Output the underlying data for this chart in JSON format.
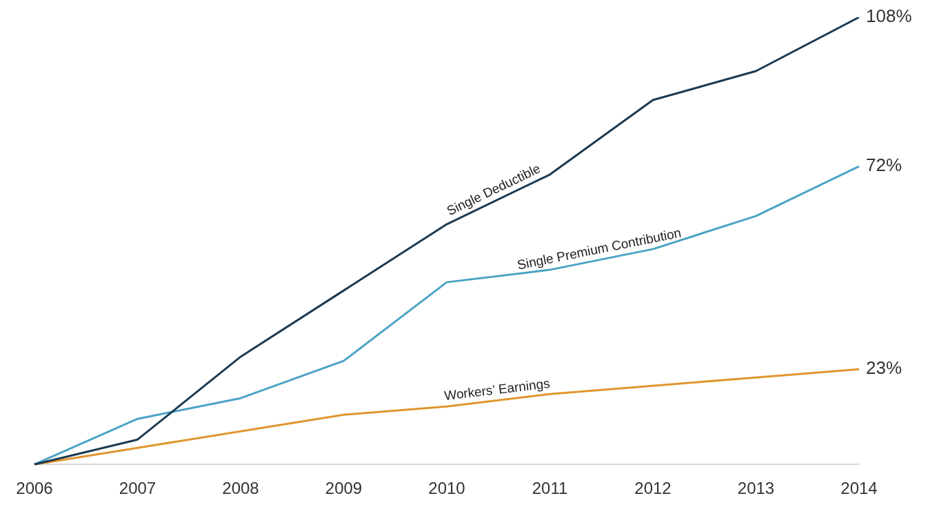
{
  "chart_data": {
    "type": "line",
    "categories": [
      "2006",
      "2007",
      "2008",
      "2009",
      "2010",
      "2011",
      "2012",
      "2013",
      "2014"
    ],
    "tick_labels": "x",
    "grid": false,
    "legend": false,
    "marker": "none",
    "line_style": "solid",
    "series": [
      {
        "name": "Single Deductible",
        "color": "#1c3a52",
        "values": [
          0,
          6,
          26,
          42,
          58,
          70,
          88,
          95,
          108
        ],
        "value_labels": [
          null,
          null,
          null,
          null,
          null,
          null,
          null,
          null,
          "108%"
        ]
      },
      {
        "name": "Single Premium Contribution",
        "color": "#4aa3c4",
        "values": [
          0,
          11,
          16,
          25,
          44,
          47,
          52,
          60,
          72
        ],
        "value_labels": [
          null,
          null,
          null,
          null,
          null,
          null,
          null,
          null,
          "72%"
        ]
      },
      {
        "name": "Workers’ Earnings",
        "color": "#e0962f",
        "values": [
          0,
          4,
          8,
          12,
          14,
          17,
          19,
          21,
          23
        ],
        "value_labels": [
          null,
          null,
          null,
          null,
          null,
          null,
          null,
          null,
          "23%"
        ]
      }
    ]
  }
}
